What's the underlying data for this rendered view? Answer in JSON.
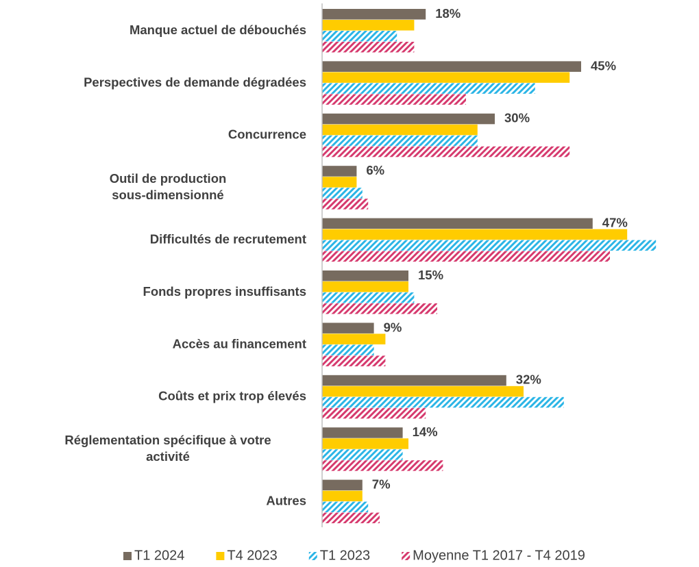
{
  "chart_data": {
    "type": "bar",
    "orientation": "horizontal",
    "categories": [
      "Manque actuel de débouchés",
      "Perspectives de demande dégradées",
      "Concurrence",
      [
        "Outil de production",
        "sous-dimensionné"
      ],
      "Difficultés de recrutement",
      "Fonds propres insuffisants",
      "Accès au financement",
      "Coûts et prix trop élevés",
      [
        "Réglementation spécifique à votre",
        "activité"
      ],
      "Autres"
    ],
    "series": [
      {
        "name": "T1 2024",
        "color": "#776b5f",
        "hatch": false,
        "values": [
          18,
          45,
          30,
          6,
          47,
          15,
          9,
          32,
          14,
          7
        ],
        "value_labels": [
          "18%",
          "45%",
          "30%",
          "6%",
          "47%",
          "15%",
          "9%",
          "32%",
          "14%",
          "7%"
        ]
      },
      {
        "name": "T4 2023",
        "color": "#ffcc00",
        "hatch": false,
        "values": [
          16,
          43,
          27,
          6,
          53,
          15,
          11,
          35,
          15,
          7
        ]
      },
      {
        "name": "T1 2023",
        "color": "#2bb5e6",
        "hatch": true,
        "values": [
          13,
          37,
          27,
          7,
          58,
          16,
          9,
          42,
          14,
          8
        ]
      },
      {
        "name": "Moyenne T1 2017 - T4 2019",
        "color": "#d63a6e",
        "hatch": true,
        "values": [
          16,
          25,
          43,
          8,
          50,
          20,
          11,
          18,
          21,
          10
        ]
      }
    ],
    "xlim": [
      0,
      60
    ],
    "legend": "bottom"
  }
}
